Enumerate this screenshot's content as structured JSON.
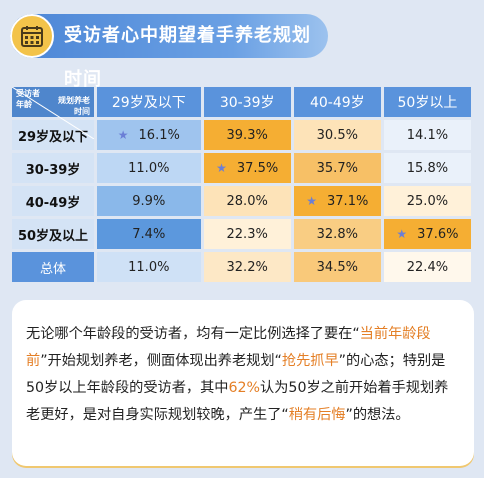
{
  "header": {
    "title": "受访者心中期望着手养老规划时间",
    "icon": "calendar-icon"
  },
  "table": {
    "corner": {
      "top_right": [
        "规划养老",
        "时间"
      ],
      "bottom_left": [
        "受访者",
        "年龄"
      ]
    },
    "columns": [
      "29岁及以下",
      "30-39岁",
      "40-49岁",
      "50岁以上"
    ],
    "rows": [
      {
        "label": "29岁及以下",
        "values": [
          "16.1%",
          "39.3%",
          "30.5%",
          "14.1%"
        ],
        "star_col": 0
      },
      {
        "label": "30-39岁",
        "values": [
          "11.0%",
          "37.5%",
          "35.7%",
          "15.8%"
        ],
        "star_col": 1
      },
      {
        "label": "40-49岁",
        "values": [
          "9.9%",
          "28.0%",
          "37.1%",
          "25.0%"
        ],
        "star_col": 2
      },
      {
        "label": "50岁及以上",
        "values": [
          "7.4%",
          "22.3%",
          "32.8%",
          "37.6%"
        ],
        "star_col": 3
      },
      {
        "label": "总体",
        "values": [
          "11.0%",
          "32.2%",
          "34.5%",
          "22.4%"
        ],
        "star_col": null
      }
    ],
    "colors": {
      "0": [
        "#9fc4ee",
        "#eaf1fa",
        "#eaf1fa",
        "#eaf1fa"
      ],
      "1": [
        "#ffe7bf",
        "#f5ae33",
        "#f9c97a",
        "#fff3dc"
      ],
      "2": [
        "#ffe7bf",
        "#f9c97a",
        "#f5ae33",
        "#fff3dc"
      ],
      "3": [
        "#ffe7bf",
        "#fff3dc",
        "#f9c97a",
        "#f5ae33"
      ]
    },
    "column_colors": [
      [
        "#9fc4ee",
        "#bdd7f4",
        "#8ab8ea",
        "#5c98dd",
        "#cfe1f6"
      ],
      [
        "#f5ae33",
        "#f5ae33",
        "#fde3b8",
        "#fff1d9",
        "#fde8c6"
      ],
      [
        "#fde3b8",
        "#f7c066",
        "#f5ae33",
        "#f9cd83",
        "#f9c97a"
      ],
      [
        "#eaf1fa",
        "#eaf1fa",
        "#fff1d9",
        "#f5ae33",
        "#fff8ec"
      ]
    ]
  },
  "summary": {
    "parts": [
      {
        "t": "无论哪个年龄段的受访者，均有一定比例选择了要在“",
        "hl": false
      },
      {
        "t": "当前年龄段前",
        "hl": true
      },
      {
        "t": "”开始规划养老，侧面体现出养老规划“",
        "hl": false
      },
      {
        "t": "抢先抓早",
        "hl": true
      },
      {
        "t": "”的心态；特别是50岁以上年龄段的受访者，其中",
        "hl": false
      },
      {
        "t": "62%",
        "hl": true
      },
      {
        "t": "认为50岁之前开始着手规划养老更好，是对自身实际规划较晚，产生了“",
        "hl": false
      },
      {
        "t": "稍有后悔",
        "hl": true
      },
      {
        "t": "”的想法。",
        "hl": false
      }
    ]
  }
}
